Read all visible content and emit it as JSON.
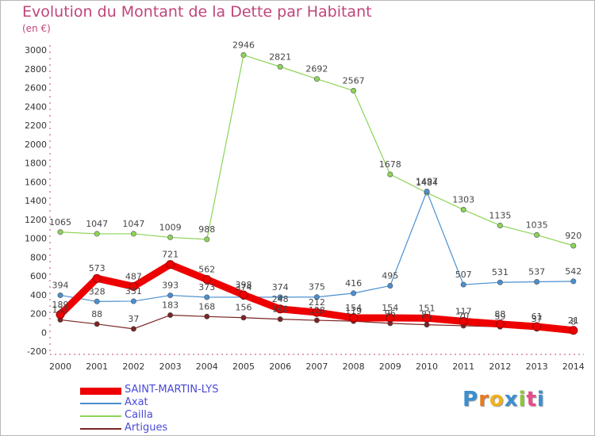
{
  "header": {
    "title": "Evolution du Montant de la Dette par Habitant",
    "subtitle": "(en €)"
  },
  "brand": {
    "logo_letters": [
      "P",
      "r",
      "o",
      "x",
      "i",
      "t",
      "i"
    ],
    "logo_colors": [
      "#3a8fd0",
      "#e87a1c",
      "#f0b21a",
      "#3a8fd0",
      "#8cc63f",
      "#e84b8a",
      "#3a8fd0"
    ]
  },
  "chart_data": {
    "type": "line",
    "categories": [
      "2000",
      "2001",
      "2002",
      "2003",
      "2004",
      "2005",
      "2006",
      "2007",
      "2008",
      "2009",
      "2010",
      "2011",
      "2012",
      "2013",
      "2014"
    ],
    "ylim": [
      -200,
      3000
    ],
    "yticks": [
      -200,
      0,
      200,
      400,
      600,
      800,
      1000,
      1200,
      1400,
      1600,
      1800,
      2000,
      2200,
      2400,
      2600,
      2800,
      3000
    ],
    "grid": false,
    "legend_position": "bottom-left",
    "series": [
      {
        "name": "SAINT-MARTIN-LYS",
        "color": "#ee0000",
        "values": [
          189,
          573,
          487,
          721,
          562,
          398,
          248,
          212,
          154,
          154,
          151,
          117,
          88,
          61,
          21
        ],
        "labels": [
          "189",
          "573",
          "487",
          "721",
          "562",
          "398",
          "248",
          "212",
          "154",
          "154",
          "151",
          "117",
          "88",
          "61",
          "21"
        ]
      },
      {
        "name": "Axat",
        "color": "#4a8fd0",
        "values": [
          394,
          328,
          331,
          393,
          373,
          374,
          374,
          375,
          416,
          495,
          1497,
          507,
          531,
          537,
          542
        ],
        "labels": [
          "394",
          "328",
          "331",
          "393",
          "373",
          "374",
          "374",
          "375",
          "416",
          "495",
          "1497",
          "507",
          "531",
          "537",
          "542"
        ]
      },
      {
        "name": "Cailla",
        "color": "#8cd458",
        "values": [
          1065,
          1047,
          1047,
          1009,
          988,
          2946,
          2821,
          2692,
          2567,
          1678,
          1484,
          1303,
          1135,
          1035,
          920
        ],
        "labels": [
          "1065",
          "1047",
          "1047",
          "1009",
          "988",
          "2946",
          "2821",
          "2692",
          "2567",
          "1678",
          "1484",
          "1303",
          "1135",
          "1035",
          "920"
        ]
      },
      {
        "name": "Artigues",
        "color": "#7a2424",
        "values": [
          133,
          88,
          37,
          183,
          168,
          156,
          140,
          128,
          119,
          96,
          81,
          70,
          59,
          37,
          8
        ],
        "labels": [
          "133",
          "88",
          "37",
          "183",
          "168",
          "156",
          "140",
          "128",
          "119",
          "96",
          "81",
          "70",
          "59",
          "37",
          "8"
        ]
      }
    ]
  }
}
